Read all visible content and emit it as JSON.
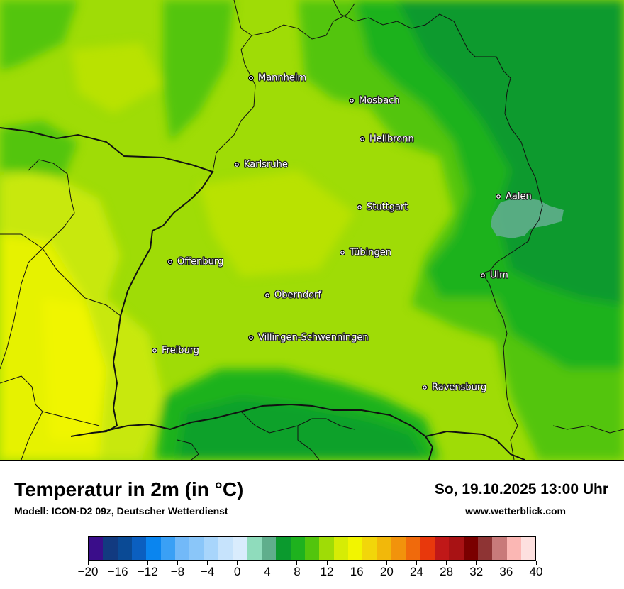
{
  "map": {
    "cities": [
      {
        "name": "Mannheim"
      },
      {
        "name": "Mosbach"
      },
      {
        "name": "Heilbronn"
      },
      {
        "name": "Karlsruhe"
      },
      {
        "name": "Aalen"
      },
      {
        "name": "Stuttgart"
      },
      {
        "name": "Tübingen"
      },
      {
        "name": "Offenburg"
      },
      {
        "name": "Ulm"
      },
      {
        "name": "Oberndorf"
      },
      {
        "name": "Villingen-Schwenningen"
      },
      {
        "name": "Freiburg"
      },
      {
        "name": "Ravensburg"
      }
    ]
  },
  "footer": {
    "title": "Temperatur in 2m (in °C)",
    "subtitle": "Modell: ICON-D2 09z, Deutscher Wetterdienst",
    "datetime": "So, 19.10.2025 13:00 Uhr",
    "website": "www.wetterblick.com"
  },
  "legend": {
    "colors": [
      "#3a0d8a",
      "#123a80",
      "#0a4a95",
      "#0b5fc0",
      "#0a85ef",
      "#3aa0f5",
      "#72b9f8",
      "#8ac6f9",
      "#a8d5fb",
      "#c6e3fc",
      "#d9ecfd",
      "#8fdcbc",
      "#5fae8c",
      "#0b9a2e",
      "#1eb21e",
      "#52c50d",
      "#9fdc06",
      "#d6ec05",
      "#f2f500",
      "#f2d60a",
      "#f2b80a",
      "#f2930c",
      "#f06a0c",
      "#e8380c",
      "#c01818",
      "#a81214",
      "#7a0000",
      "#8e3434",
      "#c87a7a",
      "#fbb7b4",
      "#fde0df"
    ],
    "tick_labels": [
      "−20",
      "−16",
      "−12",
      "−8",
      "−4",
      "0",
      "4",
      "8",
      "12",
      "16",
      "20",
      "24",
      "28",
      "32",
      "36",
      "40"
    ]
  }
}
